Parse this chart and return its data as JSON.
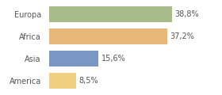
{
  "categories": [
    "Europa",
    "Africa",
    "Asia",
    "America"
  ],
  "values": [
    38.8,
    37.2,
    15.6,
    8.5
  ],
  "labels": [
    "38,8%",
    "37,2%",
    "15,6%",
    "8,5%"
  ],
  "bar_colors": [
    "#a8bb8a",
    "#e8b87a",
    "#7a96c2",
    "#f0d080"
  ],
  "background_color": "#ffffff",
  "xlim": [
    0,
    46
  ],
  "bar_height": 0.72,
  "label_fontsize": 7.0,
  "tick_fontsize": 7.0,
  "label_color": "#555555",
  "tick_color": "#555555"
}
